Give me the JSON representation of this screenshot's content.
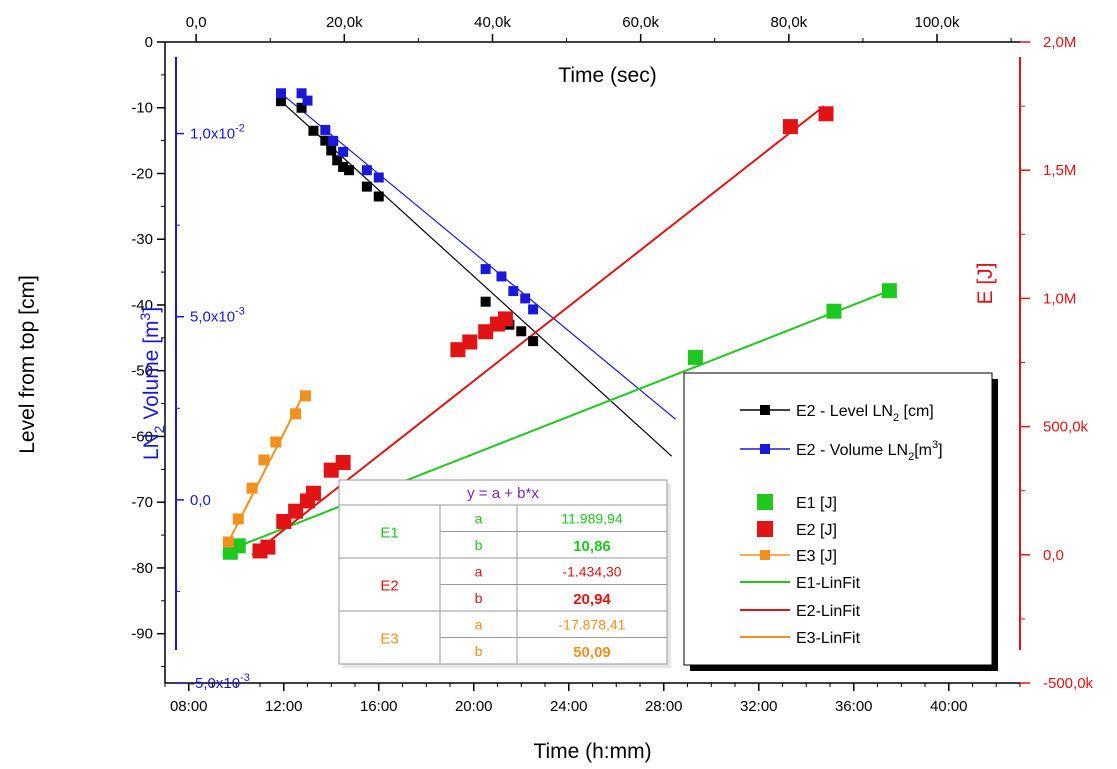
{
  "chart_data": {
    "type": "scatter",
    "title": "",
    "colors": {
      "black": "#000000",
      "blue": "#1a1ad6",
      "red": "#e01414",
      "green": "#1ec81e",
      "orange": "#f0901e",
      "purple": "#7a24b4"
    },
    "axes": {
      "bottom": {
        "label": "Time (h:mm)",
        "range": [
          "07:00",
          "43:00"
        ],
        "ticks": [
          "08:00",
          "12:00",
          "16:00",
          "20:00",
          "24:00",
          "28:00",
          "32:00",
          "36:00",
          "40:00"
        ]
      },
      "top": {
        "label": "Time (sec)",
        "range": [
          -4200,
          111200
        ],
        "ticks": [
          "0,0",
          "20,0k",
          "40,0k",
          "60,0k",
          "80,0k",
          "100,0k"
        ],
        "tick_values": [
          0,
          20000,
          40000,
          60000,
          80000,
          100000
        ]
      },
      "left": {
        "label": "Level from top [cm]",
        "range": [
          -97.5,
          0
        ],
        "ticks": [
          "0",
          "-10",
          "-20",
          "-30",
          "-40",
          "-50",
          "-60",
          "-70",
          "-80",
          "-90"
        ],
        "tick_values": [
          0,
          -10,
          -20,
          -30,
          -40,
          -50,
          -60,
          -70,
          -80,
          -90
        ]
      },
      "inner_left": {
        "label_main": "LN",
        "label_sub": "2",
        "label_rest": " Volume [m",
        "label_sup": "3",
        "label_end": "]",
        "range": [
          -0.005,
          0.0125
        ],
        "ticks": [
          {
            "value": 0.01,
            "mantissa": "1,0x10",
            "exponent": "-2"
          },
          {
            "value": 0.005,
            "mantissa": "5,0x10",
            "exponent": "-3"
          },
          {
            "value": 0.0,
            "mantissa": "0,0",
            "exponent": ""
          },
          {
            "value": -0.005,
            "mantissa": "-5,0x10",
            "exponent": "-3"
          }
        ]
      },
      "right": {
        "label": "E [J]",
        "range": [
          -500000,
          2000000
        ],
        "ticks": [
          "2,0M",
          "1,5M",
          "1,0M",
          "500,0k",
          "0,0",
          "-500,0k"
        ],
        "tick_values": [
          2000000,
          1500000,
          1000000,
          500000,
          0,
          -500000
        ]
      }
    },
    "series": [
      {
        "name": "E2 - Level LN",
        "name_sub": "2",
        "name_rest": " [cm]",
        "axis": "left",
        "color": "black",
        "marker": "small-square",
        "x": [
          "11:53",
          "12:45",
          "13:15",
          "13:45",
          "14:00",
          "14:15",
          "14:30",
          "14:45",
          "15:30",
          "16:00",
          "20:30",
          "21:30",
          "22:00",
          "22:30"
        ],
        "y": [
          -9.0,
          -10.0,
          -13.5,
          -15.0,
          -16.5,
          -18.0,
          -19.0,
          -19.5,
          -22.0,
          -23.5,
          -39.5,
          -43.0,
          -44.0,
          -45.5
        ]
      },
      {
        "name": "E2 - Volume LN",
        "name_sub": "2",
        "name_rest": "[m",
        "name_sup": "3",
        "name_end": "]",
        "axis": "inner_left",
        "color": "blue",
        "marker": "small-square",
        "x": [
          "11:53",
          "12:45",
          "13:00",
          "13:45",
          "14:05",
          "14:30",
          "15:30",
          "16:00",
          "20:30",
          "21:10",
          "21:40",
          "22:10",
          "22:30"
        ],
        "y": [
          0.0111,
          0.0111,
          0.0109,
          0.0101,
          0.0098,
          0.0095,
          0.009,
          0.0088,
          0.0063,
          0.0061,
          0.0057,
          0.0055,
          0.0052
        ]
      },
      {
        "name": "E1 [J]",
        "axis": "right",
        "color": "green",
        "marker": "big-square",
        "x": [
          "09:45",
          "10:05",
          "29:20",
          "35:10",
          "37:30"
        ],
        "y": [
          10000,
          35000,
          770000,
          950000,
          1030000
        ]
      },
      {
        "name": "E2 [J]",
        "axis": "right",
        "color": "red",
        "marker": "big-square",
        "x": [
          "11:00",
          "11:20",
          "12:00",
          "12:30",
          "13:00",
          "13:15",
          "14:00",
          "14:30",
          "19:20",
          "19:50",
          "20:30",
          "21:00",
          "21:20",
          "33:20",
          "34:50"
        ],
        "y": [
          15000,
          30000,
          130000,
          170000,
          210000,
          240000,
          330000,
          360000,
          800000,
          830000,
          870000,
          900000,
          920000,
          1670000,
          1720000
        ]
      },
      {
        "name": "E3 [J]",
        "axis": "right",
        "color": "orange",
        "marker": "medium-square",
        "x": [
          "09:40",
          "10:05",
          "10:40",
          "11:10",
          "11:40",
          "12:30",
          "12:55"
        ],
        "y": [
          50000,
          140000,
          260000,
          370000,
          440000,
          550000,
          620000
        ]
      }
    ],
    "fits": [
      {
        "name": "E1-LinFit",
        "color": "green",
        "axis": "right",
        "x": [
          "10:00",
          "37:30"
        ],
        "y": [
          30000,
          1030000
        ]
      },
      {
        "name": "E2-LinFit",
        "color": "red",
        "axis": "right",
        "x": [
          "10:40",
          "34:45"
        ],
        "y": [
          0,
          1750000
        ]
      },
      {
        "name": "E3-LinFit",
        "color": "orange",
        "axis": "right",
        "x": [
          "09:40",
          "12:55"
        ],
        "y": [
          50000,
          640000
        ]
      }
    ],
    "trend_lines": [
      {
        "series": "E2 - Level LN2",
        "color": "black",
        "axis": "left",
        "x": [
          "11:53",
          "28:20"
        ],
        "y": [
          -9.0,
          -63.0
        ]
      },
      {
        "series": "E2 - Volume LN2",
        "color": "blue",
        "axis": "inner_left",
        "x": [
          "11:53",
          "28:30"
        ],
        "y": [
          0.0111,
          0.0022
        ]
      }
    ],
    "legend": {
      "placement": "bottom-right inside plot",
      "entries": [
        {
          "name": "E2 - Level LN",
          "sub": "2",
          "rest": " [cm]",
          "type": "line-marker",
          "color": "black"
        },
        {
          "name": "E2 - Volume LN",
          "sub": "2",
          "rest": "[m",
          "sup": "3",
          "end": "]",
          "type": "line-marker",
          "color": "blue"
        },
        {
          "name": "E1 [J]",
          "type": "big-marker",
          "color": "green"
        },
        {
          "name": "E2 [J]",
          "type": "big-marker",
          "color": "red"
        },
        {
          "name": "E3 [J]",
          "type": "line-marker",
          "color": "orange"
        },
        {
          "name": "E1-LinFit",
          "type": "line",
          "color": "green"
        },
        {
          "name": "E2-LinFit",
          "type": "line",
          "color": "red"
        },
        {
          "name": "E3-LinFit",
          "type": "line",
          "color": "orange"
        }
      ]
    },
    "fit_table": {
      "header": "y = a + b*x",
      "rows": [
        {
          "group": "E1",
          "color": "green",
          "a": "11.989,94",
          "b": "10,86"
        },
        {
          "group": "E2",
          "color": "red",
          "a": "-1.434,30",
          "b": "20,94"
        },
        {
          "group": "E3",
          "color": "orange",
          "a": "-17.878,41",
          "b": "50,09"
        }
      ],
      "a_label": "a",
      "b_label": "b"
    }
  }
}
